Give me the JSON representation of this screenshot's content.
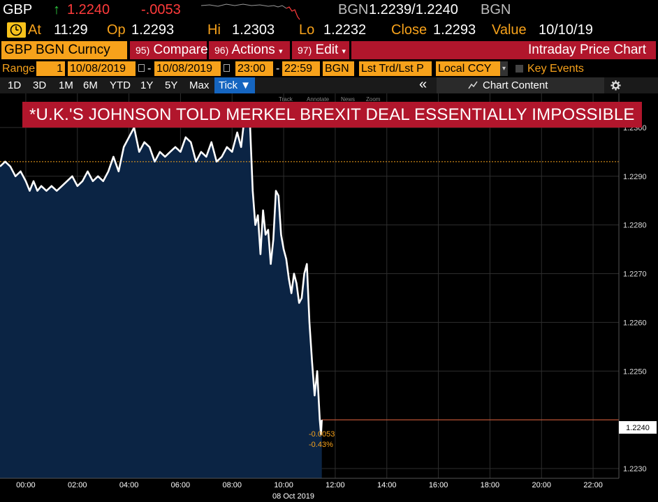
{
  "ticker": {
    "symbol": "GBP",
    "arrow": "↑",
    "last": "1.2240",
    "change": "-.0053",
    "source": "BGN",
    "bid_ask": "1.2239/1.2240",
    "source2": "BGN"
  },
  "quote": {
    "at_label": "At",
    "time": "11:29",
    "open_label": "Op",
    "open": "1.2293",
    "high_label": "Hi",
    "high": "1.2303",
    "low_label": "Lo",
    "low": "1.2232",
    "close_label": "Close",
    "close": "1.2293",
    "value_label": "Value",
    "value_date": "10/10/19"
  },
  "menu": {
    "security": "GBP BGN Curncy",
    "compare_num": "95)",
    "compare": "Compare",
    "actions_num": "96)",
    "actions": "Actions",
    "edit_num": "97)",
    "edit": "Edit",
    "title": "Intraday Price Chart"
  },
  "range": {
    "label": "Range",
    "count": "1",
    "start_date": "10/08/2019",
    "dash": "-",
    "end_date": "10/08/2019",
    "start_time": "23:00",
    "dash2": "-",
    "end_time": "22:59",
    "source": "BGN",
    "market": "Lst Trd/Lst P",
    "currency": "Local CCY",
    "key_events": "Key Events"
  },
  "periods": [
    "1D",
    "3D",
    "1M",
    "6M",
    "YTD",
    "1Y",
    "5Y",
    "Max"
  ],
  "tick_label": "Tick ▼",
  "collapse_icon": "«",
  "chart_content_label": "Chart Content",
  "toolbar_hints": [
    "Track",
    "Annotate",
    "News",
    "Zoom"
  ],
  "headline": "*U.K.'S JOHNSON TOLD MERKEL BREXIT DEAL ESSENTIALLY IMPOSSIBLE",
  "colors": {
    "amber": "#f7a21b",
    "red": "#b1162c",
    "area_fill": "#0b2444",
    "line": "#ffffff",
    "prev_close": "#f7a21b"
  },
  "chart_data": {
    "type": "area",
    "xlabel_date": "08 Oct 2019",
    "x_ticks": [
      "00:00",
      "02:00",
      "04:00",
      "06:00",
      "08:00",
      "10:00",
      "12:00",
      "14:00",
      "16:00",
      "18:00",
      "20:00",
      "22:00"
    ],
    "y_ticks": [
      "1.2230",
      "1.2240",
      "1.2250",
      "1.2260",
      "1.2270",
      "1.2280",
      "1.2290",
      "1.2300"
    ],
    "x_range_hours": [
      -1,
      23
    ],
    "y_range": [
      1.2228,
      1.2307
    ],
    "prev_close": 1.2293,
    "last_value": 1.224,
    "last_label": "1.2240",
    "change_abs": "-0.0053",
    "change_pct": "-0.43%",
    "series": [
      {
        "x": [
          -1.0,
          -0.8,
          -0.6,
          -0.4,
          -0.2,
          0.0,
          0.15,
          0.3,
          0.45,
          0.6,
          0.8,
          1.0,
          1.2,
          1.4,
          1.6,
          1.8,
          2.0,
          2.2,
          2.4,
          2.6,
          2.8,
          3.0,
          3.2,
          3.4,
          3.6,
          3.8,
          4.0,
          4.2,
          4.4,
          4.6,
          4.8,
          5.0,
          5.2,
          5.4,
          5.6,
          5.8,
          6.0,
          6.2,
          6.4,
          6.6,
          6.8,
          7.0,
          7.2,
          7.4,
          7.6,
          7.8,
          8.0,
          8.2,
          8.35,
          8.5,
          8.6,
          8.7,
          8.8,
          8.9,
          9.0,
          9.1,
          9.2,
          9.3,
          9.4,
          9.5,
          9.6,
          9.7,
          9.8,
          9.9,
          10.0,
          10.1,
          10.2,
          10.3,
          10.4,
          10.5,
          10.6,
          10.7,
          10.8,
          10.9,
          11.0,
          11.1,
          11.2,
          11.3,
          11.4,
          11.45,
          11.48
        ],
        "y": [
          1.2292,
          1.2293,
          1.2292,
          1.229,
          1.2291,
          1.2289,
          1.2287,
          1.2289,
          1.2287,
          1.2288,
          1.2287,
          1.2288,
          1.2287,
          1.2288,
          1.2289,
          1.229,
          1.2288,
          1.2289,
          1.2291,
          1.2289,
          1.229,
          1.2289,
          1.2291,
          1.2294,
          1.2291,
          1.2296,
          1.2298,
          1.23,
          1.2295,
          1.2297,
          1.2296,
          1.2293,
          1.2295,
          1.2294,
          1.2295,
          1.2296,
          1.2295,
          1.2298,
          1.2297,
          1.2293,
          1.2295,
          1.2294,
          1.2297,
          1.2293,
          1.2294,
          1.2296,
          1.2295,
          1.2299,
          1.2296,
          1.2303,
          1.2302,
          1.23,
          1.2287,
          1.228,
          1.2282,
          1.2274,
          1.2283,
          1.2278,
          1.2279,
          1.2272,
          1.2277,
          1.2287,
          1.2286,
          1.2278,
          1.2275,
          1.2273,
          1.2269,
          1.2266,
          1.227,
          1.2268,
          1.2264,
          1.2265,
          1.227,
          1.2272,
          1.226,
          1.2252,
          1.2245,
          1.225,
          1.224,
          1.2237,
          1.224
        ]
      }
    ]
  }
}
